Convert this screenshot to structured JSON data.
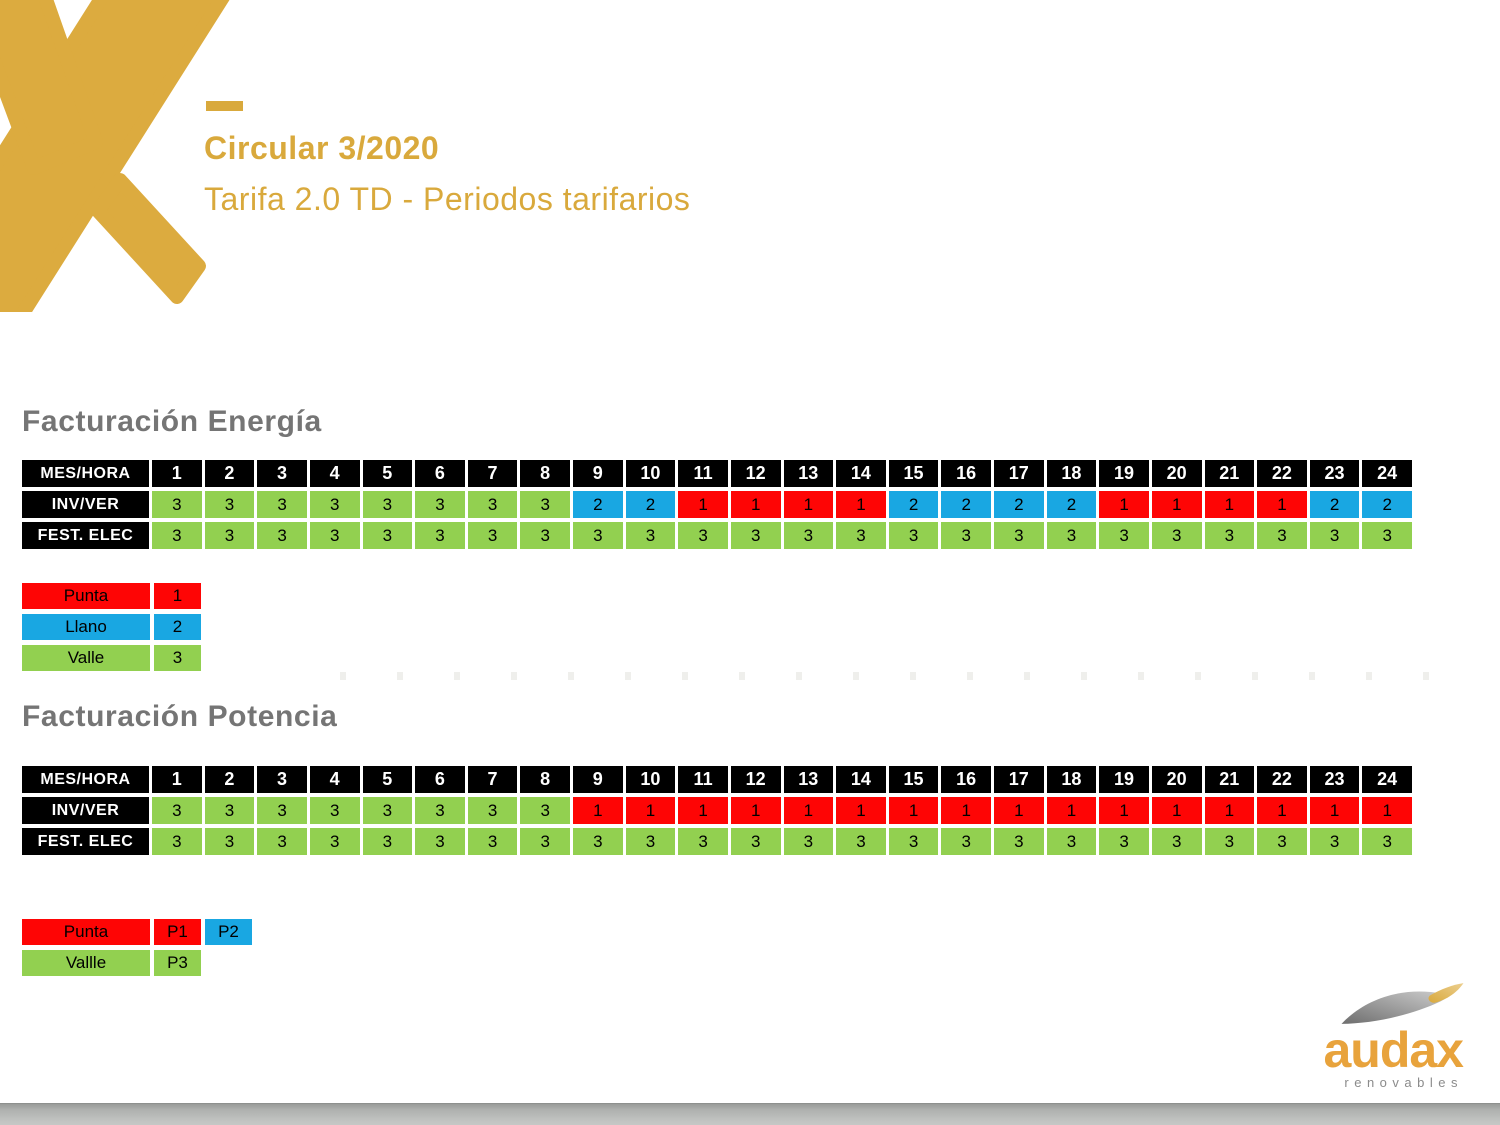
{
  "title": {
    "line1": "Circular 3/2020",
    "line2": "Tarifa 2.0 TD - Periodos tarifarios"
  },
  "colors": {
    "gold": "#D9A93C",
    "gray_heading": "#757575",
    "black": "#000000",
    "red": "#FE0505",
    "blue": "#19A7E2",
    "green": "#92D050",
    "logo_text": "#E8A33C",
    "logo_sub": "#8B8B8B"
  },
  "corner_label": "MES/HORA",
  "hours": [
    "1",
    "2",
    "3",
    "4",
    "5",
    "6",
    "7",
    "8",
    "9",
    "10",
    "11",
    "12",
    "13",
    "14",
    "15",
    "16",
    "17",
    "18",
    "19",
    "20",
    "21",
    "22",
    "23",
    "24"
  ],
  "value_colors": {
    "1": "red",
    "2": "blue",
    "3": "green"
  },
  "sections": [
    {
      "heading": "Facturación Energía",
      "rows": [
        {
          "label": "INV/VER",
          "values": [
            "3",
            "3",
            "3",
            "3",
            "3",
            "3",
            "3",
            "3",
            "2",
            "2",
            "1",
            "1",
            "1",
            "1",
            "2",
            "2",
            "2",
            "2",
            "1",
            "1",
            "1",
            "1",
            "2",
            "2"
          ]
        },
        {
          "label": "FEST. ELEC",
          "values": [
            "3",
            "3",
            "3",
            "3",
            "3",
            "3",
            "3",
            "3",
            "3",
            "3",
            "3",
            "3",
            "3",
            "3",
            "3",
            "3",
            "3",
            "3",
            "3",
            "3",
            "3",
            "3",
            "3",
            "3"
          ]
        }
      ],
      "legend": [
        {
          "label": "Punta",
          "color": "red",
          "items": [
            {
              "text": "1",
              "color": "red"
            }
          ]
        },
        {
          "label": "Llano",
          "color": "blue",
          "items": [
            {
              "text": "2",
              "color": "blue"
            }
          ]
        },
        {
          "label": "Valle",
          "color": "green",
          "items": [
            {
              "text": "3",
              "color": "green"
            }
          ]
        }
      ]
    },
    {
      "heading": "Facturación Potencia",
      "rows": [
        {
          "label": "INV/VER",
          "values": [
            "3",
            "3",
            "3",
            "3",
            "3",
            "3",
            "3",
            "3",
            "1",
            "1",
            "1",
            "1",
            "1",
            "1",
            "1",
            "1",
            "1",
            "1",
            "1",
            "1",
            "1",
            "1",
            "1",
            "1"
          ]
        },
        {
          "label": "FEST. ELEC",
          "values": [
            "3",
            "3",
            "3",
            "3",
            "3",
            "3",
            "3",
            "3",
            "3",
            "3",
            "3",
            "3",
            "3",
            "3",
            "3",
            "3",
            "3",
            "3",
            "3",
            "3",
            "3",
            "3",
            "3",
            "3"
          ]
        }
      ],
      "legend": [
        {
          "label": "Punta",
          "color": "red",
          "items": [
            {
              "text": "P1",
              "color": "red"
            },
            {
              "text": "P2",
              "color": "blue"
            }
          ]
        },
        {
          "label": "Vallle",
          "color": "green",
          "items": [
            {
              "text": "P3",
              "color": "green"
            }
          ]
        }
      ]
    }
  ],
  "logo": {
    "brand": "audax",
    "subtitle": "renovables"
  }
}
